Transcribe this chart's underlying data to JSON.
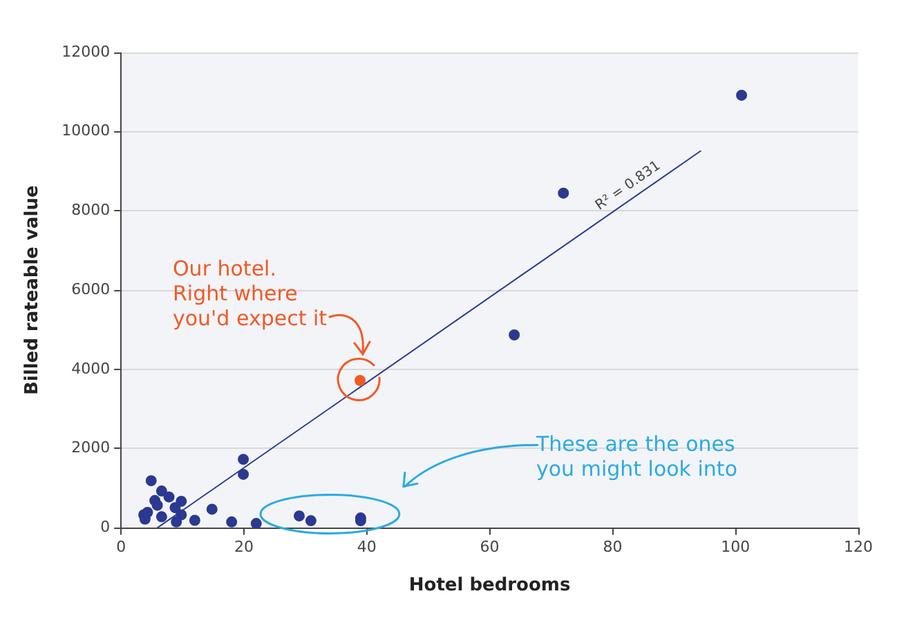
{
  "chart_data": {
    "type": "scatter",
    "xlabel": "Hotel bedrooms",
    "ylabel": "Billed rateable value",
    "xlim": [
      0,
      120
    ],
    "xticks": [
      0,
      20,
      40,
      60,
      80,
      100,
      120
    ],
    "ylim": [
      0,
      12000
    ],
    "yticks": [
      0,
      2000,
      4000,
      6000,
      8000,
      10000,
      12000
    ],
    "grid": "y",
    "legend": false,
    "marker": "circle",
    "series": [
      {
        "color": "#2b3990",
        "x": [
          3.7,
          4.3,
          4.9,
          5.5,
          5.9,
          6.6,
          7.8,
          9.8,
          8.8,
          9.8,
          9.0,
          6.6,
          3.9,
          12,
          14.8,
          18,
          19.9,
          19.9,
          22,
          29,
          30.9,
          39,
          39,
          64,
          72,
          101
        ],
        "values": [
          330,
          390,
          1190,
          690,
          570,
          930,
          780,
          670,
          510,
          330,
          150,
          280,
          220,
          190,
          470,
          150,
          1730,
          1350,
          110,
          300,
          180,
          250,
          180,
          4870,
          8450,
          10920
        ]
      },
      {
        "color": "#f05a28",
        "x": [
          38.9
        ],
        "values": [
          3720
        ]
      },
      {
        "type": "line",
        "color": "#2b3990",
        "x": [
          5.9,
          94.4
        ],
        "values": [
          0,
          9520
        ],
        "marker": "none"
      }
    ],
    "annotations": [
      "R² = 0.831",
      "Our hotel.\nRight where\nyou'd expect it",
      "These are the ones\nyou might look into"
    ]
  }
}
